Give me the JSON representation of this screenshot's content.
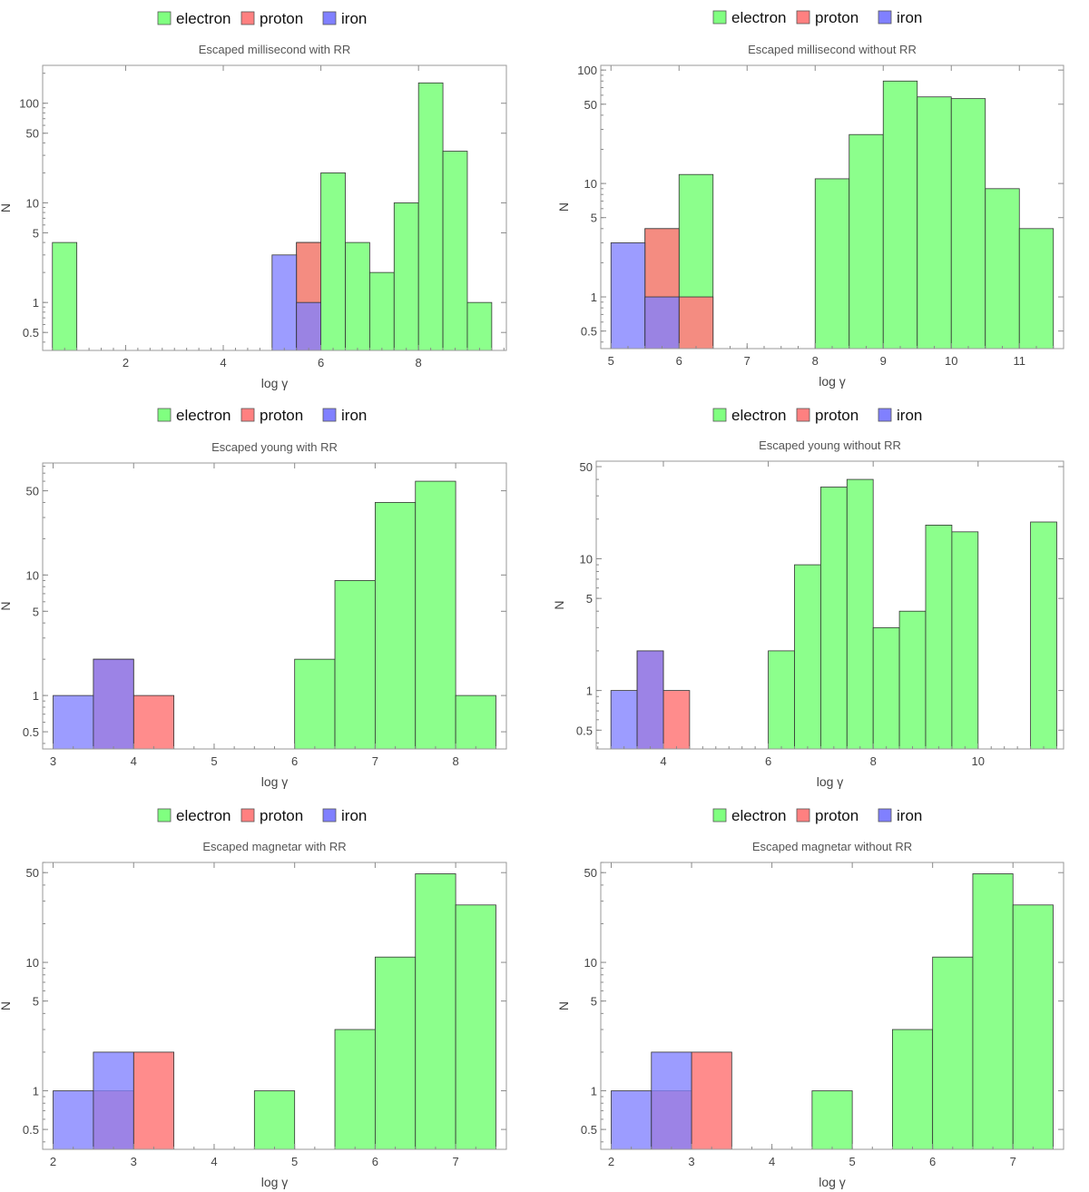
{
  "legend_colors": {
    "electron": "#80ff80",
    "proton": "#ff8080",
    "iron": "#8080ff"
  },
  "chart_data": [
    {
      "type": "bar",
      "title": "Escaped millisecond with RR",
      "xlabel": "log γ",
      "ylabel": "N",
      "xlim": [
        0.3,
        9.8
      ],
      "ylim": [
        0.33,
        240
      ],
      "yscale": "log",
      "xticks": [
        2,
        4,
        6,
        8
      ],
      "yticks": [
        {
          "v": 0.5,
          "label": "0.5"
        },
        {
          "v": 1,
          "label": "1"
        },
        {
          "v": 5,
          "label": "5"
        },
        {
          "v": 10,
          "label": "10"
        },
        {
          "v": 50,
          "label": "50"
        },
        {
          "v": 100,
          "label": "100"
        }
      ],
      "legend": [
        "electron",
        "proton",
        "iron"
      ],
      "legend_position": "top",
      "series": [
        {
          "name": "electron",
          "bins": [
            [
              0.5,
              1,
              4
            ],
            [
              5.5,
              6,
              4
            ],
            [
              6,
              6.5,
              20
            ],
            [
              6.5,
              7,
              4
            ],
            [
              7,
              7.5,
              2
            ],
            [
              7.5,
              8,
              10
            ],
            [
              8,
              8.5,
              160
            ],
            [
              8.5,
              9,
              33
            ],
            [
              9,
              9.5,
              1
            ]
          ]
        },
        {
          "name": "proton",
          "bins": [
            [
              5.5,
              6,
              4
            ]
          ]
        },
        {
          "name": "iron",
          "bins": [
            [
              5,
              5.5,
              3
            ],
            [
              5.5,
              6,
              1
            ]
          ]
        }
      ]
    },
    {
      "type": "bar",
      "title": "Escaped millisecond without RR",
      "xlabel": "log γ",
      "ylabel": "N",
      "xlim": [
        4.85,
        11.65
      ],
      "ylim": [
        0.35,
        110
      ],
      "yscale": "log",
      "xticks": [
        5,
        6,
        7,
        8,
        9,
        10,
        11
      ],
      "yticks": [
        {
          "v": 0.5,
          "label": "0.5"
        },
        {
          "v": 1,
          "label": "1"
        },
        {
          "v": 5,
          "label": "5"
        },
        {
          "v": 10,
          "label": "10"
        },
        {
          "v": 50,
          "label": "50"
        },
        {
          "v": 100,
          "label": "100"
        }
      ],
      "legend": [
        "electron",
        "proton",
        "iron"
      ],
      "legend_position": "top",
      "series": [
        {
          "name": "electron",
          "bins": [
            [
              5.5,
              6,
              4
            ],
            [
              6,
              6.5,
              12
            ],
            [
              8,
              8.5,
              11
            ],
            [
              8.5,
              9,
              27
            ],
            [
              9,
              9.5,
              80
            ],
            [
              9.5,
              10,
              58
            ],
            [
              10,
              10.5,
              56
            ],
            [
              10.5,
              11,
              9
            ],
            [
              11,
              11.5,
              4
            ]
          ]
        },
        {
          "name": "proton",
          "bins": [
            [
              5.5,
              6,
              4
            ],
            [
              6,
              6.5,
              1
            ]
          ]
        },
        {
          "name": "iron",
          "bins": [
            [
              5,
              5.5,
              3
            ],
            [
              5.5,
              6,
              1
            ]
          ]
        }
      ]
    },
    {
      "type": "bar",
      "title": "Escaped young with RR",
      "xlabel": "log γ",
      "ylabel": "N",
      "xlim": [
        2.87,
        8.63
      ],
      "ylim": [
        0.36,
        85
      ],
      "yscale": "log",
      "xticks": [
        3,
        4,
        5,
        6,
        7,
        8
      ],
      "yticks": [
        {
          "v": 0.5,
          "label": "0.5"
        },
        {
          "v": 1,
          "label": "1"
        },
        {
          "v": 5,
          "label": "5"
        },
        {
          "v": 10,
          "label": "10"
        },
        {
          "v": 50,
          "label": "50"
        }
      ],
      "legend": [
        "electron",
        "proton",
        "iron"
      ],
      "legend_position": "top",
      "series": [
        {
          "name": "electron",
          "bins": [
            [
              6,
              6.5,
              2
            ],
            [
              6.5,
              7,
              9
            ],
            [
              7,
              7.5,
              40
            ],
            [
              7.5,
              8,
              60
            ],
            [
              8,
              8.5,
              1
            ]
          ]
        },
        {
          "name": "proton",
          "bins": [
            [
              3.5,
              4,
              2
            ],
            [
              4,
              4.5,
              1
            ]
          ]
        },
        {
          "name": "iron",
          "bins": [
            [
              3,
              3.5,
              1
            ],
            [
              3.5,
              4,
              2
            ]
          ]
        }
      ]
    },
    {
      "type": "bar",
      "title": "Escaped young without RR",
      "xlabel": "log γ",
      "ylabel": "N",
      "xlim": [
        2.72,
        11.63
      ],
      "ylim": [
        0.36,
        55
      ],
      "yscale": "log",
      "xticks": [
        4,
        6,
        8,
        10
      ],
      "yticks": [
        {
          "v": 0.5,
          "label": "0.5"
        },
        {
          "v": 1,
          "label": "1"
        },
        {
          "v": 5,
          "label": "5"
        },
        {
          "v": 10,
          "label": "10"
        },
        {
          "v": 50,
          "label": "50"
        }
      ],
      "legend": [
        "electron",
        "proton",
        "iron"
      ],
      "legend_position": "top",
      "series": [
        {
          "name": "electron",
          "bins": [
            [
              6,
              6.5,
              2
            ],
            [
              6.5,
              7,
              9
            ],
            [
              7,
              7.5,
              35
            ],
            [
              7.5,
              8,
              40
            ],
            [
              8,
              8.5,
              3
            ],
            [
              8.5,
              9,
              4
            ],
            [
              9,
              9.5,
              18
            ],
            [
              9.5,
              10,
              16
            ],
            [
              11,
              11.5,
              19
            ]
          ]
        },
        {
          "name": "proton",
          "bins": [
            [
              3.5,
              4,
              2
            ],
            [
              4,
              4.5,
              1
            ]
          ]
        },
        {
          "name": "iron",
          "bins": [
            [
              3,
              3.5,
              1
            ],
            [
              3.5,
              4,
              2
            ]
          ]
        }
      ]
    },
    {
      "type": "bar",
      "title": "Escaped magnetar with RR",
      "xlabel": "log γ",
      "ylabel": "N",
      "xlim": [
        1.87,
        7.63
      ],
      "ylim": [
        0.35,
        60
      ],
      "yscale": "log",
      "xticks": [
        2,
        3,
        4,
        5,
        6,
        7
      ],
      "yticks": [
        {
          "v": 0.5,
          "label": "0.5"
        },
        {
          "v": 1,
          "label": "1"
        },
        {
          "v": 5,
          "label": "5"
        },
        {
          "v": 10,
          "label": "10"
        },
        {
          "v": 50,
          "label": "50"
        }
      ],
      "legend": [
        "electron",
        "proton",
        "iron"
      ],
      "legend_position": "top",
      "series": [
        {
          "name": "electron",
          "bins": [
            [
              4.5,
              5,
              1
            ],
            [
              5.5,
              6,
              3
            ],
            [
              6,
              6.5,
              11
            ],
            [
              6.5,
              7,
              49
            ],
            [
              7,
              7.5,
              28
            ]
          ]
        },
        {
          "name": "proton",
          "bins": [
            [
              2.5,
              3,
              1
            ],
            [
              3,
              3.5,
              2
            ]
          ]
        },
        {
          "name": "iron",
          "bins": [
            [
              2,
              2.5,
              1
            ],
            [
              2.5,
              3,
              2
            ]
          ]
        }
      ]
    },
    {
      "type": "bar",
      "title": "Escaped magnetar without RR",
      "xlabel": "log γ",
      "ylabel": "N",
      "xlim": [
        1.87,
        7.63
      ],
      "ylim": [
        0.35,
        60
      ],
      "yscale": "log",
      "xticks": [
        2,
        3,
        4,
        5,
        6,
        7
      ],
      "yticks": [
        {
          "v": 0.5,
          "label": "0.5"
        },
        {
          "v": 1,
          "label": "1"
        },
        {
          "v": 5,
          "label": "5"
        },
        {
          "v": 10,
          "label": "10"
        },
        {
          "v": 50,
          "label": "50"
        }
      ],
      "legend": [
        "electron",
        "proton",
        "iron"
      ],
      "legend_position": "top",
      "series": [
        {
          "name": "electron",
          "bins": [
            [
              4.5,
              5,
              1
            ],
            [
              5.5,
              6,
              3
            ],
            [
              6,
              6.5,
              11
            ],
            [
              6.5,
              7,
              49
            ],
            [
              7,
              7.5,
              28
            ]
          ]
        },
        {
          "name": "proton",
          "bins": [
            [
              2.5,
              3,
              1
            ],
            [
              3,
              3.5,
              2
            ]
          ]
        },
        {
          "name": "iron",
          "bins": [
            [
              2,
              2.5,
              1
            ],
            [
              2.5,
              3,
              2
            ]
          ]
        }
      ]
    }
  ]
}
